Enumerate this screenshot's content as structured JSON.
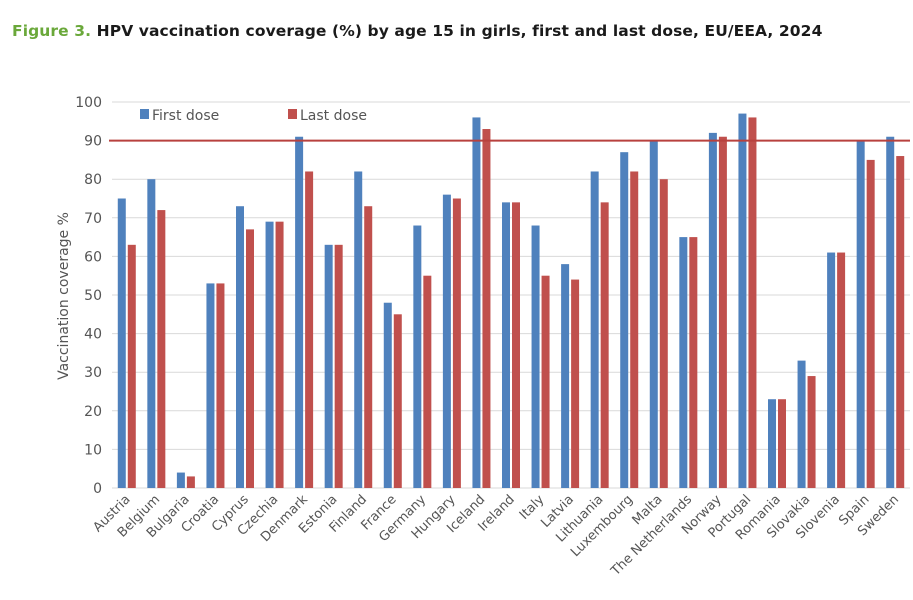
{
  "figure": {
    "number_label": "Figure 3.",
    "title": "HPV vaccination coverage (%) by age 15 in girls, first and last dose, EU/EEA, 2024"
  },
  "colors": {
    "first_dose": "#4f81bd",
    "last_dose": "#c0504d",
    "target_line": "#b8413e",
    "gridline": "#d9d9d9",
    "figure_number": "#6aa83a"
  },
  "chart_data": {
    "type": "bar",
    "title": "HPV vaccination coverage (%) by age 15 in girls, first and last dose, EU/EEA, 2024",
    "xlabel": "",
    "ylabel": "Vaccination coverage %",
    "ylim": [
      0,
      100
    ],
    "yticks": [
      0,
      10,
      20,
      30,
      40,
      50,
      60,
      70,
      80,
      90,
      100
    ],
    "grid": true,
    "legend_position": "top-left",
    "reference_line": {
      "value": 90,
      "label": ""
    },
    "categories": [
      "Austria",
      "Belgium",
      "Bulgaria",
      "Croatia",
      "Cyprus",
      "Czechia",
      "Denmark",
      "Estonia",
      "Finland",
      "France",
      "Germany",
      "Hungary",
      "Iceland",
      "Ireland",
      "Italy",
      "Latvia",
      "Lithuania",
      "Luxembourg",
      "Malta",
      "The Netherlands",
      "Norway",
      "Portugal",
      "Romania",
      "Slovakia",
      "Slovenia",
      "Spain",
      "Sweden"
    ],
    "series": [
      {
        "name": "First dose",
        "values": [
          75,
          80,
          4,
          53,
          73,
          69,
          91,
          63,
          82,
          48,
          68,
          76,
          96,
          74,
          68,
          58,
          82,
          87,
          90,
          65,
          92,
          97,
          23,
          33,
          61,
          90,
          91
        ]
      },
      {
        "name": "Last dose",
        "values": [
          63,
          72,
          3,
          53,
          67,
          69,
          82,
          63,
          73,
          45,
          55,
          75,
          93,
          74,
          55,
          54,
          74,
          82,
          80,
          65,
          91,
          96,
          23,
          29,
          61,
          85,
          86
        ]
      }
    ]
  }
}
